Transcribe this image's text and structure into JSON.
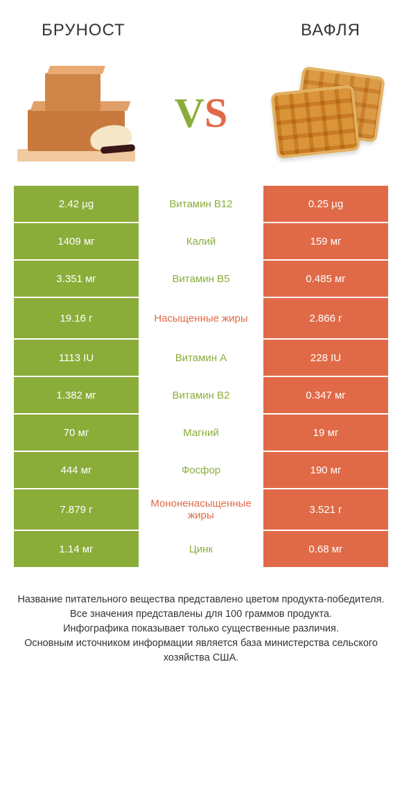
{
  "colors": {
    "left_winner": "#8aad3a",
    "right_winner": "#e06a47",
    "left_loser": "#cfcfcf",
    "right_loser": "#cfcfcf",
    "mid_left_win": "#8aad3a",
    "mid_right_win": "#e06a47",
    "text_white": "#ffffff",
    "background": "#ffffff"
  },
  "header": {
    "left_title": "БРУНОСТ",
    "right_title": "ВАФЛЯ",
    "vs_v": "V",
    "vs_s": "S"
  },
  "rows": [
    {
      "label": "Витамин B12",
      "left": "2.42 µg",
      "right": "0.25 µg",
      "winner": "left",
      "tall": false
    },
    {
      "label": "Калий",
      "left": "1409 мг",
      "right": "159 мг",
      "winner": "left",
      "tall": false
    },
    {
      "label": "Витамин B5",
      "left": "3.351 мг",
      "right": "0.485 мг",
      "winner": "left",
      "tall": false
    },
    {
      "label": "Насыщенные жиры",
      "left": "19.16 г",
      "right": "2.866 г",
      "winner": "right",
      "tall": true
    },
    {
      "label": "Витамин A",
      "left": "1113 IU",
      "right": "228 IU",
      "winner": "left",
      "tall": false
    },
    {
      "label": "Витамин B2",
      "left": "1.382 мг",
      "right": "0.347 мг",
      "winner": "left",
      "tall": false
    },
    {
      "label": "Магний",
      "left": "70 мг",
      "right": "19 мг",
      "winner": "left",
      "tall": false
    },
    {
      "label": "Фосфор",
      "left": "444 мг",
      "right": "190 мг",
      "winner": "left",
      "tall": false
    },
    {
      "label": "Мононенасыщенные жиры",
      "left": "7.879 г",
      "right": "3.521 г",
      "winner": "right",
      "tall": true
    },
    {
      "label": "Цинк",
      "left": "1.14 мг",
      "right": "0.68 мг",
      "winner": "left",
      "tall": false
    }
  ],
  "footer": {
    "line1": "Название питательного вещества представлено цветом продукта-победителя.",
    "line2": "Все значения представлены для 100 граммов продукта.",
    "line3": "Инфографика показывает только существенные различия.",
    "line4": "Основным источником информации является база министерства сельского хозяйства США."
  }
}
